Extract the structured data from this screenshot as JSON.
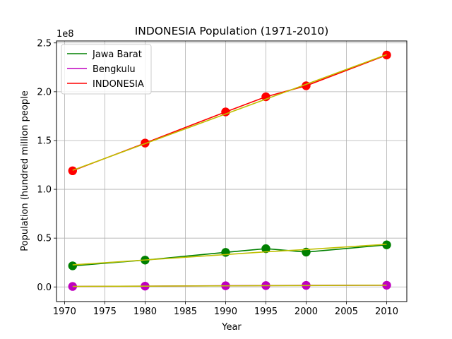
{
  "chart_data": {
    "type": "line",
    "title": "INDONESIA Population (1971-2010)",
    "xlabel": "Year",
    "ylabel": "Population (hundred million people",
    "scale_label": "1e8",
    "xlim": [
      1969,
      2012.5
    ],
    "ylim": [
      -0.15,
      2.52
    ],
    "x_ticks": [
      1970,
      1975,
      1980,
      1985,
      1990,
      1995,
      2000,
      2005,
      2010
    ],
    "y_ticks": [
      0.0,
      0.5,
      1.0,
      1.5,
      2.0,
      2.5
    ],
    "y_tick_labels": [
      "0.0",
      "0.5",
      "1.0",
      "1.5",
      "2.0",
      "2.5"
    ],
    "grid": true,
    "legend_position": "top-left",
    "x": [
      1971,
      1980,
      1990,
      1995,
      2000,
      2010
    ],
    "series": [
      {
        "name": "Jawa Barat",
        "color": "#008000",
        "values": [
          0.216,
          0.275,
          0.354,
          0.392,
          0.357,
          0.431
        ],
        "trend": [
          0.226,
          0.276,
          0.332,
          0.36,
          0.383,
          0.437
        ]
      },
      {
        "name": "Bengkulu",
        "color": "#bf00bf",
        "values": [
          0.005,
          0.008,
          0.012,
          0.014,
          0.016,
          0.017
        ],
        "trend": [
          0.005,
          0.008,
          0.011,
          0.013,
          0.014,
          0.018
        ]
      },
      {
        "name": "INDONESIA",
        "color": "#ff0000",
        "values": [
          1.19,
          1.474,
          1.793,
          1.948,
          2.061,
          2.376
        ],
        "trend": [
          1.195,
          1.468,
          1.772,
          1.924,
          2.076,
          2.38
        ]
      }
    ],
    "trend_color": "#bfbf00"
  }
}
